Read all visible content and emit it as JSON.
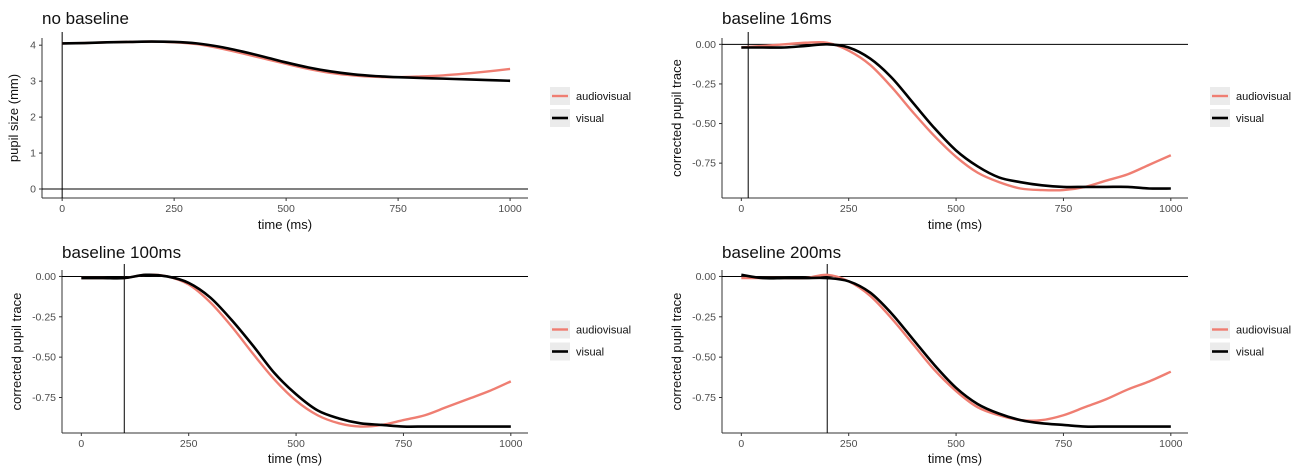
{
  "colors": {
    "audiovisual": "#ef7e72",
    "visual": "#000000",
    "legend_key_bg": "#ebebeb"
  },
  "chart_data": [
    {
      "type": "line",
      "title": "no baseline",
      "xlabel": "time (ms)",
      "ylabel": "pupil size (mm)",
      "xlim": [
        -45,
        1040
      ],
      "ylim": [
        -0.25,
        4.2
      ],
      "xticks": [
        0,
        250,
        500,
        750,
        1000
      ],
      "xtick_labels": [
        "0",
        "250",
        "500",
        "750",
        "1000"
      ],
      "yticks": [
        0,
        1,
        2,
        3,
        4
      ],
      "ytick_labels": [
        "0",
        "1",
        "2",
        "3",
        "4"
      ],
      "vline": 0,
      "hline": 0,
      "legend": [
        "audiovisual",
        "visual"
      ],
      "legend_position": "right",
      "series": [
        {
          "name": "audiovisual",
          "x": [
            0,
            50,
            100,
            150,
            200,
            250,
            300,
            350,
            400,
            450,
            500,
            550,
            600,
            650,
            700,
            750,
            800,
            850,
            900,
            950,
            1000
          ],
          "values": [
            4.05,
            4.06,
            4.08,
            4.09,
            4.1,
            4.08,
            4.03,
            3.92,
            3.78,
            3.63,
            3.48,
            3.34,
            3.23,
            3.16,
            3.12,
            3.11,
            3.13,
            3.16,
            3.21,
            3.27,
            3.34
          ]
        },
        {
          "name": "visual",
          "x": [
            0,
            50,
            100,
            150,
            200,
            250,
            300,
            350,
            400,
            450,
            500,
            550,
            600,
            650,
            700,
            750,
            800,
            850,
            900,
            950,
            1000
          ],
          "values": [
            4.05,
            4.06,
            4.08,
            4.09,
            4.1,
            4.09,
            4.05,
            3.96,
            3.83,
            3.68,
            3.52,
            3.38,
            3.27,
            3.19,
            3.14,
            3.11,
            3.09,
            3.07,
            3.05,
            3.03,
            3.01
          ]
        }
      ]
    },
    {
      "type": "line",
      "title": "baseline 16ms",
      "xlabel": "time (ms)",
      "ylabel": "corrected pupil trace",
      "xlim": [
        -45,
        1040
      ],
      "ylim": [
        -0.97,
        0.04
      ],
      "xticks": [
        0,
        250,
        500,
        750,
        1000
      ],
      "xtick_labels": [
        "0",
        "250",
        "500",
        "750",
        "1000"
      ],
      "yticks": [
        0,
        -0.25,
        -0.5,
        -0.75
      ],
      "ytick_labels": [
        "0.00",
        "-0.25",
        "-0.50",
        "-0.75"
      ],
      "vline": 16,
      "hline": 0,
      "legend": [
        "audiovisual",
        "visual"
      ],
      "legend_position": "right",
      "series": [
        {
          "name": "audiovisual",
          "x": [
            0,
            50,
            100,
            150,
            200,
            250,
            300,
            350,
            400,
            450,
            500,
            550,
            600,
            650,
            700,
            750,
            800,
            850,
            900,
            950,
            1000
          ],
          "values": [
            -0.02,
            -0.01,
            0.0,
            0.01,
            0.01,
            -0.04,
            -0.13,
            -0.27,
            -0.43,
            -0.58,
            -0.71,
            -0.81,
            -0.87,
            -0.91,
            -0.92,
            -0.92,
            -0.9,
            -0.86,
            -0.82,
            -0.76,
            -0.7
          ]
        },
        {
          "name": "visual",
          "x": [
            0,
            50,
            100,
            150,
            200,
            250,
            300,
            350,
            400,
            450,
            500,
            550,
            600,
            650,
            700,
            750,
            800,
            850,
            900,
            950,
            1000
          ],
          "values": [
            -0.02,
            -0.02,
            -0.02,
            -0.01,
            0.0,
            -0.02,
            -0.09,
            -0.21,
            -0.37,
            -0.53,
            -0.67,
            -0.77,
            -0.84,
            -0.87,
            -0.89,
            -0.9,
            -0.9,
            -0.9,
            -0.9,
            -0.91,
            -0.91
          ]
        }
      ]
    },
    {
      "type": "line",
      "title": "baseline 100ms",
      "xlabel": "time (ms)",
      "ylabel": "corrected pupil trace",
      "xlim": [
        -45,
        1040
      ],
      "ylim": [
        -0.97,
        0.04
      ],
      "xticks": [
        0,
        250,
        500,
        750,
        1000
      ],
      "xtick_labels": [
        "0",
        "250",
        "500",
        "750",
        "1000"
      ],
      "yticks": [
        0,
        -0.25,
        -0.5,
        -0.75
      ],
      "ytick_labels": [
        "0.00",
        "-0.25",
        "-0.50",
        "-0.75"
      ],
      "vline": 100,
      "hline": 0,
      "legend": [
        "audiovisual",
        "visual"
      ],
      "legend_position": "right",
      "series": [
        {
          "name": "audiovisual",
          "x": [
            0,
            50,
            100,
            150,
            200,
            250,
            300,
            350,
            400,
            450,
            500,
            550,
            600,
            650,
            700,
            750,
            800,
            850,
            900,
            950,
            1000
          ],
          "values": [
            -0.01,
            -0.01,
            -0.01,
            0.01,
            0.0,
            -0.05,
            -0.16,
            -0.31,
            -0.48,
            -0.64,
            -0.77,
            -0.86,
            -0.91,
            -0.93,
            -0.92,
            -0.89,
            -0.86,
            -0.81,
            -0.76,
            -0.71,
            -0.65
          ]
        },
        {
          "name": "visual",
          "x": [
            0,
            50,
            100,
            150,
            200,
            250,
            300,
            350,
            400,
            450,
            500,
            550,
            600,
            650,
            700,
            750,
            800,
            850,
            900,
            950,
            1000
          ],
          "values": [
            -0.01,
            -0.01,
            -0.01,
            0.01,
            0.0,
            -0.04,
            -0.13,
            -0.27,
            -0.43,
            -0.6,
            -0.73,
            -0.83,
            -0.88,
            -0.91,
            -0.92,
            -0.93,
            -0.93,
            -0.93,
            -0.93,
            -0.93,
            -0.93
          ]
        }
      ]
    },
    {
      "type": "line",
      "title": "baseline 200ms",
      "xlabel": "time (ms)",
      "ylabel": "corrected pupil trace",
      "xlim": [
        -45,
        1040
      ],
      "ylim": [
        -0.97,
        0.04
      ],
      "xticks": [
        0,
        250,
        500,
        750,
        1000
      ],
      "xtick_labels": [
        "0",
        "250",
        "500",
        "750",
        "1000"
      ],
      "yticks": [
        0,
        -0.25,
        -0.5,
        -0.75
      ],
      "ytick_labels": [
        "0.00",
        "-0.25",
        "-0.50",
        "-0.75"
      ],
      "vline": 200,
      "hline": 0,
      "legend": [
        "audiovisual",
        "visual"
      ],
      "legend_position": "right",
      "series": [
        {
          "name": "audiovisual",
          "x": [
            0,
            50,
            100,
            150,
            200,
            250,
            300,
            350,
            400,
            450,
            500,
            550,
            600,
            650,
            700,
            750,
            800,
            850,
            900,
            950,
            1000
          ],
          "values": [
            -0.01,
            -0.01,
            -0.01,
            -0.01,
            0.01,
            -0.03,
            -0.12,
            -0.26,
            -0.42,
            -0.58,
            -0.71,
            -0.81,
            -0.86,
            -0.89,
            -0.89,
            -0.86,
            -0.81,
            -0.76,
            -0.7,
            -0.65,
            -0.59
          ]
        },
        {
          "name": "visual",
          "x": [
            0,
            50,
            100,
            150,
            200,
            250,
            300,
            350,
            400,
            450,
            500,
            550,
            600,
            650,
            700,
            750,
            800,
            850,
            900,
            950,
            1000
          ],
          "values": [
            0.01,
            -0.01,
            -0.01,
            -0.01,
            -0.01,
            -0.03,
            -0.1,
            -0.23,
            -0.39,
            -0.55,
            -0.69,
            -0.79,
            -0.85,
            -0.89,
            -0.91,
            -0.92,
            -0.93,
            -0.93,
            -0.93,
            -0.93,
            -0.93
          ]
        }
      ]
    }
  ]
}
